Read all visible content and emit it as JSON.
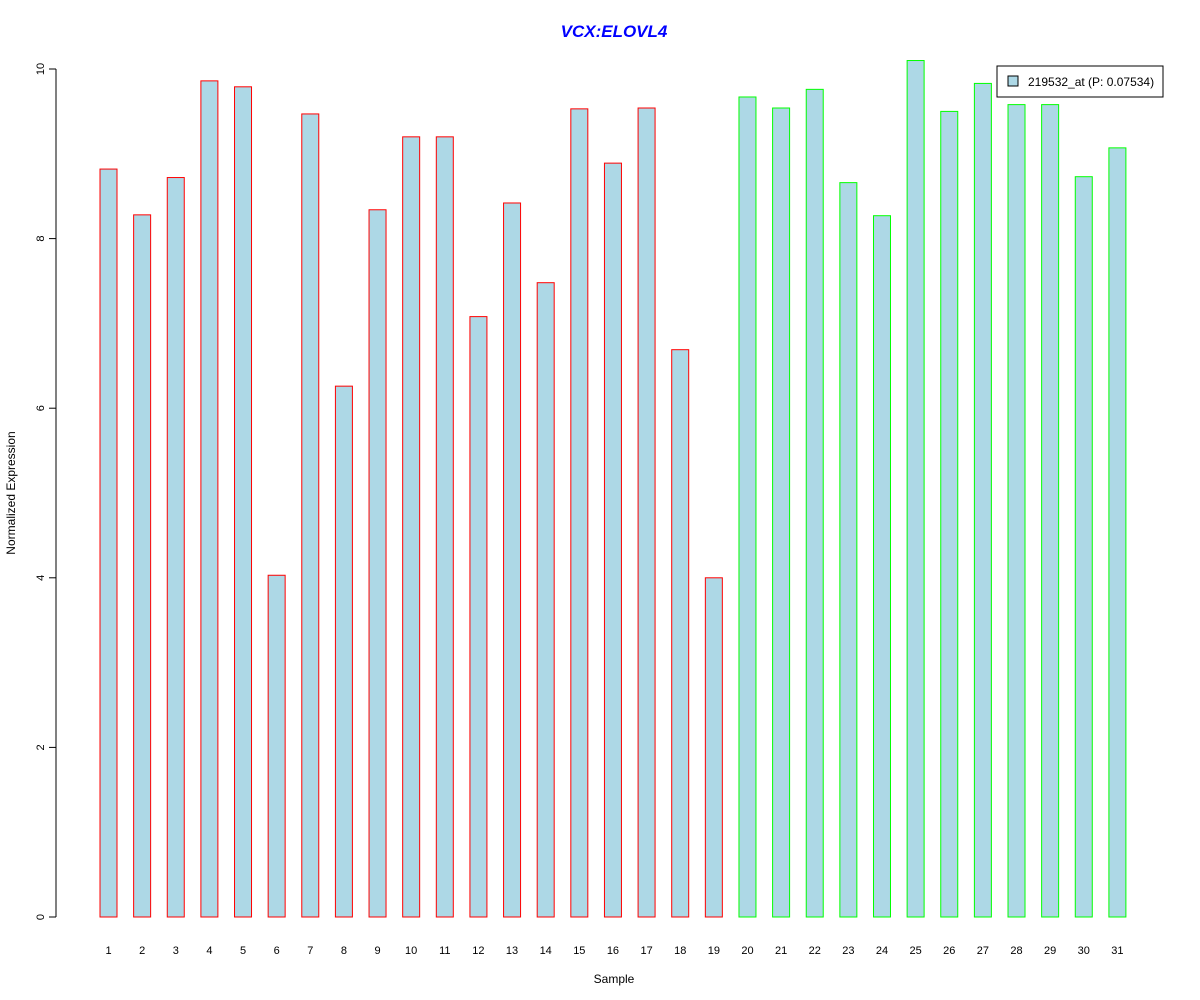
{
  "chart_data": {
    "type": "bar",
    "title": "VCX:ELOVL4",
    "xlabel": "Sample",
    "ylabel": "Normalized Expression",
    "ylim": [
      0,
      10
    ],
    "yticks": [
      0,
      2,
      4,
      6,
      8,
      10
    ],
    "categories": [
      "1",
      "2",
      "3",
      "4",
      "5",
      "6",
      "7",
      "8",
      "9",
      "10",
      "11",
      "12",
      "13",
      "14",
      "15",
      "16",
      "17",
      "18",
      "19",
      "20",
      "21",
      "22",
      "23",
      "24",
      "25",
      "26",
      "27",
      "28",
      "29",
      "30",
      "31"
    ],
    "series": [
      {
        "name": "219532_at (P: 0.07534)",
        "values": [
          8.82,
          8.28,
          8.72,
          9.86,
          9.79,
          4.03,
          9.47,
          6.26,
          8.34,
          9.2,
          9.2,
          7.08,
          8.42,
          7.48,
          9.53,
          8.89,
          9.54,
          6.69,
          4.0,
          9.67,
          9.54,
          9.76,
          8.66,
          8.27,
          10.1,
          9.5,
          9.83,
          9.58,
          9.58,
          8.73,
          9.07
        ]
      }
    ],
    "bar_fill": "#add8e6",
    "bar_outline_colors": [
      "#ff0000",
      "#ff0000",
      "#ff0000",
      "#ff0000",
      "#ff0000",
      "#ff0000",
      "#ff0000",
      "#ff0000",
      "#ff0000",
      "#ff0000",
      "#ff0000",
      "#ff0000",
      "#ff0000",
      "#ff0000",
      "#ff0000",
      "#ff0000",
      "#ff0000",
      "#ff0000",
      "#ff0000",
      "#00ff00",
      "#00ff00",
      "#00ff00",
      "#00ff00",
      "#00ff00",
      "#00ff00",
      "#00ff00",
      "#00ff00",
      "#00ff00",
      "#00ff00",
      "#00ff00",
      "#00ff00"
    ],
    "title_color": "#0000ff",
    "legend_position": "top-right",
    "grid": false
  }
}
